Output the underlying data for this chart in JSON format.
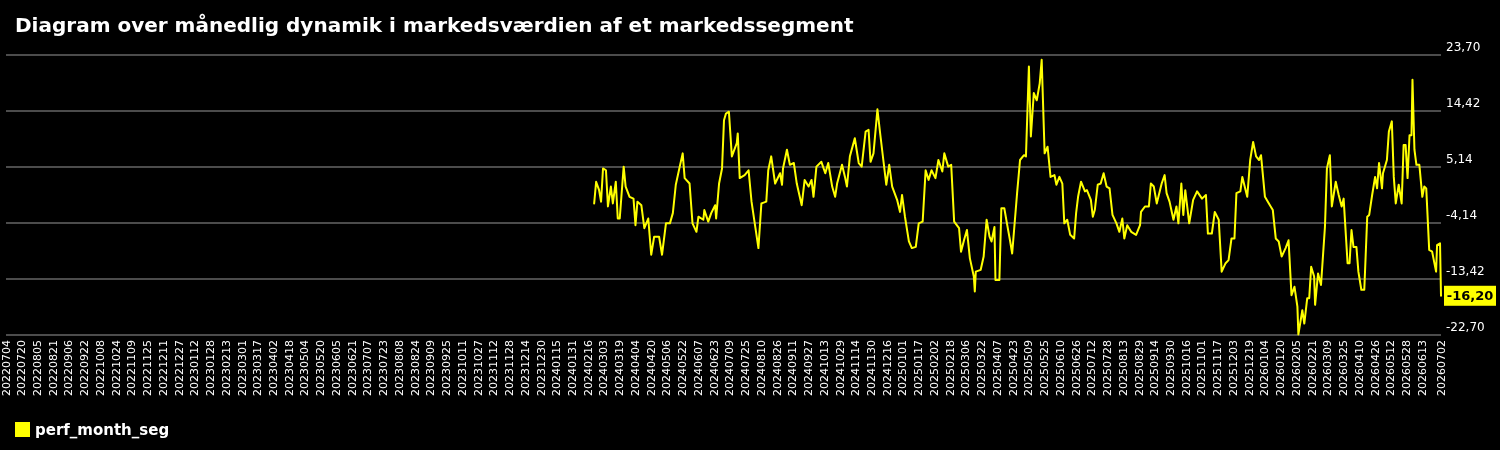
{
  "chart_data": {
    "type": "line",
    "title": "Diagram over månedlig dynamik i markedsværdien af et markedssegment",
    "x": [
      "2024-02-22",
      "2024-02-24",
      "2024-02-27",
      "2024-02-29",
      "2024-03-02",
      "2024-03-05",
      "2024-03-07",
      "2024-03-10",
      "2024-03-12",
      "2024-03-15",
      "2024-03-17",
      "2024-03-19",
      "2024-03-23",
      "2024-03-25",
      "2024-03-29",
      "2024-04-02",
      "2024-04-04",
      "2024-04-06",
      "2024-04-10",
      "2024-04-13",
      "2024-04-17",
      "2024-04-20",
      "2024-04-23",
      "2024-04-28",
      "2024-05-01",
      "2024-05-05",
      "2024-05-09",
      "2024-05-12",
      "2024-05-15",
      "2024-05-19",
      "2024-05-22",
      "2024-05-24",
      "2024-05-29",
      "2024-06-01",
      "2024-06-05",
      "2024-06-07",
      "2024-06-12",
      "2024-06-13",
      "2024-06-17",
      "2024-06-20",
      "2024-06-24",
      "2024-06-25",
      "2024-06-28",
      "2024-07-01",
      "2024-07-03",
      "2024-07-05",
      "2024-07-08",
      "2024-07-11",
      "2024-07-16",
      "2024-07-17",
      "2024-07-19",
      "2024-07-24",
      "2024-07-28",
      "2024-07-31",
      "2024-08-04",
      "2024-08-07",
      "2024-08-10",
      "2024-08-15",
      "2024-08-17",
      "2024-08-20",
      "2024-08-24",
      "2024-08-29",
      "2024-08-31",
      "2024-09-01",
      "2024-09-05",
      "2024-09-08",
      "2024-09-12",
      "2024-09-15",
      "2024-09-20",
      "2024-09-23",
      "2024-09-27",
      "2024-09-30",
      "2024-10-02",
      "2024-10-05",
      "2024-10-10",
      "2024-10-14",
      "2024-10-17",
      "2024-10-21",
      "2024-10-24",
      "2024-10-26",
      "2024-10-31",
      "2024-11-03",
      "2024-11-05",
      "2024-11-08",
      "2024-11-13",
      "2024-11-17",
      "2024-11-20",
      "2024-11-24",
      "2024-11-27",
      "2024-11-29",
      "2024-12-02",
      "2024-12-06",
      "2024-12-09",
      "2024-12-12",
      "2024-12-15",
      "2024-12-18",
      "2024-12-21",
      "2024-12-26",
      "2024-12-29",
      "2024-12-31",
      "2025-01-03",
      "2025-01-07",
      "2025-01-10",
      "2025-01-14",
      "2025-01-17",
      "2025-01-21",
      "2025-01-24",
      "2025-01-27",
      "2025-01-30",
      "2025-02-03",
      "2025-02-06",
      "2025-02-10",
      "2025-02-12",
      "2025-02-16",
      "2025-02-19",
      "2025-02-22",
      "2025-02-27",
      "2025-03-01",
      "2025-03-04",
      "2025-03-07",
      "2025-03-10",
      "2025-03-14",
      "2025-03-15",
      "2025-03-16",
      "2025-03-21",
      "2025-03-24",
      "2025-03-27",
      "2025-03-30",
      "2025-04-01",
      "2025-04-04",
      "2025-04-05",
      "2025-04-09",
      "2025-04-11",
      "2025-04-14",
      "2025-04-17",
      "2025-04-20",
      "2025-04-22",
      "2025-04-27",
      "2025-04-30",
      "2025-05-04",
      "2025-05-06",
      "2025-05-09",
      "2025-05-11",
      "2025-05-14",
      "2025-05-17",
      "2025-05-20",
      "2025-05-22",
      "2025-05-25",
      "2025-05-28",
      "2025-05-31",
      "2025-06-04",
      "2025-06-06",
      "2025-06-09",
      "2025-06-12",
      "2025-06-14",
      "2025-06-17",
      "2025-06-20",
      "2025-06-24",
      "2025-06-26",
      "2025-06-28",
      "2025-07-01",
      "2025-07-05",
      "2025-07-07",
      "2025-07-11",
      "2025-07-13",
      "2025-07-15",
      "2025-07-18",
      "2025-07-21",
      "2025-07-24",
      "2025-07-27",
      "2025-07-30",
      "2025-08-02",
      "2025-08-06",
      "2025-08-09",
      "2025-08-12",
      "2025-08-14",
      "2025-08-17",
      "2025-08-21",
      "2025-08-26",
      "2025-08-30",
      "2025-08-31",
      "2025-09-04",
      "2025-09-08",
      "2025-09-10",
      "2025-09-13",
      "2025-09-16",
      "2025-09-21",
      "2025-09-24",
      "2025-09-26",
      "2025-09-29",
      "2025-10-03",
      "2025-10-06",
      "2025-10-08",
      "2025-10-11",
      "2025-10-13",
      "2025-10-15",
      "2025-10-19",
      "2025-10-23",
      "2025-10-27",
      "2025-11-01",
      "2025-11-05",
      "2025-11-07",
      "2025-11-11",
      "2025-11-14",
      "2025-11-18",
      "2025-11-21",
      "2025-11-25",
      "2025-11-28",
      "2025-12-01",
      "2025-12-04",
      "2025-12-06",
      "2025-12-10",
      "2025-12-12",
      "2025-12-17",
      "2025-12-20",
      "2025-12-23",
      "2025-12-26",
      "2025-12-29",
      "2025-12-31",
      "2026-01-04",
      "2026-01-08",
      "2026-01-12",
      "2026-01-15",
      "2026-01-18",
      "2026-01-21",
      "2026-01-25",
      "2026-01-28",
      "2026-01-31",
      "2026-02-03",
      "2026-02-06",
      "2026-02-07",
      "2026-02-11",
      "2026-02-13",
      "2026-02-16",
      "2026-02-18",
      "2026-02-20",
      "2026-02-23",
      "2026-02-24",
      "2026-02-27",
      "2026-03-02",
      "2026-03-06",
      "2026-03-08",
      "2026-03-11",
      "2026-03-13",
      "2026-03-17",
      "2026-03-20",
      "2026-03-23",
      "2026-03-25",
      "2026-03-29",
      "2026-03-31",
      "2026-04-02",
      "2026-04-04",
      "2026-04-07",
      "2026-04-09",
      "2026-04-12",
      "2026-04-15",
      "2026-04-18",
      "2026-04-20",
      "2026-04-23",
      "2026-04-26",
      "2026-04-28",
      "2026-04-30",
      "2026-05-03",
      "2026-05-04",
      "2026-05-08",
      "2026-05-10",
      "2026-05-13",
      "2026-05-15",
      "2026-05-17",
      "2026-05-20",
      "2026-05-23",
      "2026-05-25",
      "2026-05-27",
      "2026-05-29",
      "2026-05-31",
      "2026-06-02",
      "2026-06-03",
      "2026-06-05",
      "2026-06-07",
      "2026-06-10",
      "2026-06-13",
      "2026-06-15",
      "2026-06-17",
      "2026-06-20",
      "2026-06-23",
      "2026-06-27",
      "2026-06-28",
      "2026-07-01",
      "2026-07-02"
    ],
    "series": [
      {
        "name": "perf_month_seg",
        "color": "#ffff00",
        "values": [
          -0.9,
          2.7,
          1.3,
          -0.6,
          4.9,
          4.6,
          -1.4,
          1.9,
          -0.9,
          2.7,
          -3.4,
          -3.4,
          5.2,
          1.9,
          0.2,
          -0.1,
          -4.5,
          -0.6,
          -1.2,
          -5.0,
          -3.4,
          -9.4,
          -6.4,
          -6.4,
          -9.4,
          -4.2,
          -4.2,
          -2.5,
          2.2,
          5.2,
          7.4,
          3.3,
          2.4,
          -4.2,
          -5.6,
          -3.1,
          -3.6,
          -2.0,
          -3.9,
          -2.5,
          -1.2,
          -3.4,
          2.4,
          4.9,
          12.9,
          14.0,
          14.3,
          6.9,
          9.1,
          10.7,
          3.3,
          3.8,
          4.6,
          -0.6,
          -5.0,
          -8.3,
          -0.9,
          -0.6,
          4.6,
          6.9,
          2.4,
          4.1,
          2.2,
          4.9,
          8.0,
          5.5,
          5.8,
          2.4,
          -1.2,
          3.0,
          1.9,
          3.0,
          0.2,
          5.2,
          6.0,
          4.1,
          5.8,
          1.9,
          0.2,
          2.4,
          5.5,
          3.5,
          1.9,
          6.9,
          9.9,
          5.8,
          5.2,
          11.0,
          11.3,
          6.0,
          7.4,
          14.7,
          10.4,
          6.3,
          2.2,
          5.5,
          1.9,
          -0.3,
          -2.3,
          0.5,
          -3.1,
          -7.2,
          -8.3,
          -8.1,
          -4.2,
          -3.9,
          4.6,
          3.0,
          4.6,
          3.3,
          6.3,
          4.4,
          7.4,
          5.2,
          5.5,
          -3.9,
          -5.0,
          -8.9,
          -7.0,
          -5.3,
          -10.0,
          -13.0,
          -15.5,
          -12.2,
          -11.9,
          -9.7,
          -3.6,
          -6.4,
          -7.2,
          -4.8,
          -13.6,
          -13.6,
          -1.7,
          -1.7,
          -4.5,
          -7.2,
          -9.2,
          0.8,
          6.3,
          7.1,
          6.9,
          21.8,
          10.2,
          17.4,
          16.2,
          19.0,
          22.9,
          7.4,
          8.5,
          3.5,
          3.8,
          2.2,
          3.5,
          2.4,
          -4.2,
          -3.6,
          -6.1,
          -6.7,
          -2.5,
          0.2,
          2.7,
          1.1,
          1.3,
          -0.3,
          -3.1,
          -2.0,
          2.2,
          2.4,
          4.1,
          1.9,
          1.6,
          -2.8,
          -4.2,
          -5.6,
          -3.4,
          -6.7,
          -4.5,
          -5.6,
          -6.1,
          -4.5,
          -2.3,
          -1.4,
          -1.4,
          2.4,
          1.9,
          -0.9,
          2.4,
          3.8,
          0.8,
          -0.6,
          -3.6,
          -1.4,
          -4.2,
          2.4,
          -2.8,
          1.3,
          -4.2,
          -0.3,
          1.1,
          -0.1,
          0.5,
          -5.9,
          -5.9,
          -2.3,
          -3.6,
          -12.2,
          -10.8,
          -10.3,
          -6.7,
          -6.7,
          0.8,
          1.1,
          3.5,
          0.2,
          6.3,
          9.3,
          6.9,
          6.3,
          7.1,
          0.2,
          -0.9,
          -2.0,
          -6.7,
          -7.2,
          -9.7,
          -8.3,
          -7.0,
          -16.1,
          -14.7,
          -18.0,
          -22.6,
          -18.6,
          -20.8,
          -16.6,
          -16.6,
          -11.4,
          -13.0,
          -17.7,
          -12.5,
          -14.4,
          -4.8,
          4.9,
          7.1,
          -1.4,
          2.7,
          0.5,
          -1.4,
          -0.1,
          -10.8,
          -10.8,
          -5.3,
          -8.1,
          -8.1,
          -12.2,
          -15.2,
          -15.2,
          -3.1,
          -2.8,
          0.5,
          3.5,
          1.6,
          5.8,
          1.6,
          4.1,
          6.3,
          11.0,
          12.7,
          3.5,
          -0.9,
          2.2,
          -0.9,
          8.8,
          8.8,
          3.3,
          10.4,
          10.4,
          19.6,
          8.0,
          5.5,
          5.5,
          0.2,
          1.9,
          1.6,
          -8.6,
          -8.9,
          -12.2,
          -7.8,
          -7.5,
          -16.2
        ]
      }
    ],
    "annotations": [
      {
        "text": "-16,20",
        "x": "2026-07-02",
        "y": -16.2
      }
    ],
    "xlim": [
      "2022-07-04",
      "2026-07-02"
    ],
    "xticks": [
      {
        "value": "2022-07-04",
        "label": "20220704"
      },
      {
        "value": "2022-07-20",
        "label": "20220720"
      },
      {
        "value": "2022-08-05",
        "label": "20220805"
      },
      {
        "value": "2022-08-21",
        "label": "20220821"
      },
      {
        "value": "2022-09-06",
        "label": "20220906"
      },
      {
        "value": "2022-09-22",
        "label": "20220922"
      },
      {
        "value": "2022-10-08",
        "label": "20221008"
      },
      {
        "value": "2022-10-24",
        "label": "20221024"
      },
      {
        "value": "2022-11-09",
        "label": "20221109"
      },
      {
        "value": "2022-11-25",
        "label": "20221125"
      },
      {
        "value": "2022-12-11",
        "label": "20221211"
      },
      {
        "value": "2022-12-27",
        "label": "20221227"
      },
      {
        "value": "2023-01-12",
        "label": "20230112"
      },
      {
        "value": "2023-01-28",
        "label": "20230128"
      },
      {
        "value": "2023-02-13",
        "label": "20230213"
      },
      {
        "value": "2023-03-01",
        "label": "20230301"
      },
      {
        "value": "2023-03-17",
        "label": "20230317"
      },
      {
        "value": "2023-04-02",
        "label": "20230402"
      },
      {
        "value": "2023-04-18",
        "label": "20230418"
      },
      {
        "value": "2023-05-04",
        "label": "20230504"
      },
      {
        "value": "2023-05-20",
        "label": "20230520"
      },
      {
        "value": "2023-06-05",
        "label": "20230605"
      },
      {
        "value": "2023-06-21",
        "label": "20230621"
      },
      {
        "value": "2023-07-07",
        "label": "20230707"
      },
      {
        "value": "2023-07-23",
        "label": "20230723"
      },
      {
        "value": "2023-08-08",
        "label": "20230808"
      },
      {
        "value": "2023-08-24",
        "label": "20230824"
      },
      {
        "value": "2023-09-09",
        "label": "20230909"
      },
      {
        "value": "2023-09-25",
        "label": "20230925"
      },
      {
        "value": "2023-10-11",
        "label": "20231011"
      },
      {
        "value": "2023-10-27",
        "label": "20231027"
      },
      {
        "value": "2023-11-12",
        "label": "20231112"
      },
      {
        "value": "2023-11-28",
        "label": "20231128"
      },
      {
        "value": "2023-12-14",
        "label": "20231214"
      },
      {
        "value": "2023-12-30",
        "label": "20231230"
      },
      {
        "value": "2024-01-15",
        "label": "20240115"
      },
      {
        "value": "2024-01-31",
        "label": "20240131"
      },
      {
        "value": "2024-02-16",
        "label": "20240216"
      },
      {
        "value": "2024-03-03",
        "label": "20240303"
      },
      {
        "value": "2024-03-19",
        "label": "20240319"
      },
      {
        "value": "2024-04-04",
        "label": "20240404"
      },
      {
        "value": "2024-04-20",
        "label": "20240420"
      },
      {
        "value": "2024-05-06",
        "label": "20240506"
      },
      {
        "value": "2024-05-22",
        "label": "20240522"
      },
      {
        "value": "2024-06-07",
        "label": "20240607"
      },
      {
        "value": "2024-06-23",
        "label": "20240623"
      },
      {
        "value": "2024-07-09",
        "label": "20240709"
      },
      {
        "value": "2024-07-25",
        "label": "20240725"
      },
      {
        "value": "2024-08-10",
        "label": "20240810"
      },
      {
        "value": "2024-08-26",
        "label": "20240826"
      },
      {
        "value": "2024-09-11",
        "label": "20240911"
      },
      {
        "value": "2024-09-27",
        "label": "20240927"
      },
      {
        "value": "2024-10-13",
        "label": "20241013"
      },
      {
        "value": "2024-10-29",
        "label": "20241029"
      },
      {
        "value": "2024-11-14",
        "label": "20241114"
      },
      {
        "value": "2024-11-30",
        "label": "20241130"
      },
      {
        "value": "2024-12-16",
        "label": "20241216"
      },
      {
        "value": "2025-01-01",
        "label": "20250101"
      },
      {
        "value": "2025-01-17",
        "label": "20250117"
      },
      {
        "value": "2025-02-02",
        "label": "20250202"
      },
      {
        "value": "2025-02-18",
        "label": "20250218"
      },
      {
        "value": "2025-03-06",
        "label": "20250306"
      },
      {
        "value": "2025-03-22",
        "label": "20250322"
      },
      {
        "value": "2025-04-07",
        "label": "20250407"
      },
      {
        "value": "2025-04-23",
        "label": "20250423"
      },
      {
        "value": "2025-05-09",
        "label": "20250509"
      },
      {
        "value": "2025-05-25",
        "label": "20250525"
      },
      {
        "value": "2025-06-10",
        "label": "20250610"
      },
      {
        "value": "2025-06-26",
        "label": "20250626"
      },
      {
        "value": "2025-07-12",
        "label": "20250712"
      },
      {
        "value": "2025-07-28",
        "label": "20250728"
      },
      {
        "value": "2025-08-13",
        "label": "20250813"
      },
      {
        "value": "2025-08-29",
        "label": "20250829"
      },
      {
        "value": "2025-09-14",
        "label": "20250914"
      },
      {
        "value": "2025-09-30",
        "label": "20250930"
      },
      {
        "value": "2025-10-16",
        "label": "20251016"
      },
      {
        "value": "2025-11-01",
        "label": "20251101"
      },
      {
        "value": "2025-11-17",
        "label": "20251117"
      },
      {
        "value": "2025-12-03",
        "label": "20251203"
      },
      {
        "value": "2025-12-19",
        "label": "20251219"
      },
      {
        "value": "2026-01-04",
        "label": "20260104"
      },
      {
        "value": "2026-01-20",
        "label": "20260120"
      },
      {
        "value": "2026-02-05",
        "label": "20260205"
      },
      {
        "value": "2026-02-21",
        "label": "20260221"
      },
      {
        "value": "2026-03-09",
        "label": "20260309"
      },
      {
        "value": "2026-03-25",
        "label": "20260325"
      },
      {
        "value": "2026-04-10",
        "label": "20260410"
      },
      {
        "value": "2026-04-26",
        "label": "20260426"
      },
      {
        "value": "2026-05-12",
        "label": "20260512"
      },
      {
        "value": "2026-05-28",
        "label": "20260528"
      },
      {
        "value": "2026-06-13",
        "label": "20260613"
      },
      {
        "value": "2026-07-02",
        "label": "20260702"
      }
    ],
    "ylim": [
      -22.7,
      23.7
    ],
    "yticks": [
      {
        "value": -22.7,
        "label": "-22,70"
      },
      {
        "value": -13.42,
        "label": "-13,42"
      },
      {
        "value": -4.14,
        "label": "-4,14"
      },
      {
        "value": 5.14,
        "label": "5,14"
      },
      {
        "value": 14.42,
        "label": "14,42"
      },
      {
        "value": 23.7,
        "label": "23,70"
      }
    ],
    "grid": "y",
    "legend": "bottom left",
    "marker": "none",
    "line_style": "solid"
  }
}
